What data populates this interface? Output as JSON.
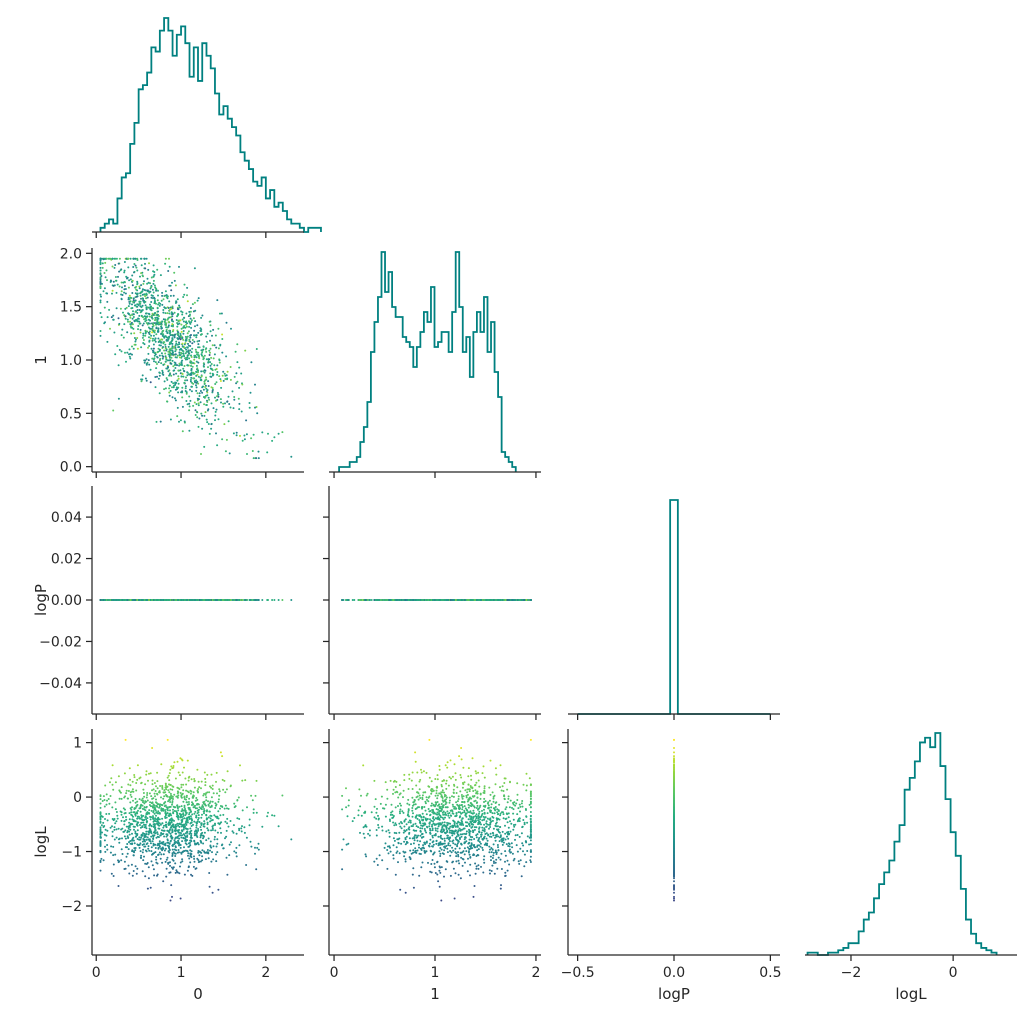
{
  "chart_data": {
    "type": "scatter",
    "layout": "corner pairplot (lower triangle scatter, diagonal histograms)",
    "variables": [
      "0",
      "1",
      "logP",
      "logL"
    ],
    "colors": {
      "histogram": "#008080",
      "colormap": "viridis",
      "axis": "#262626"
    },
    "x_labels": [
      "0",
      "1",
      "logP",
      "logL"
    ],
    "y_labels": [
      "",
      "1",
      "logP",
      "logL"
    ],
    "ticks": {
      "0": {
        "values": [
          0,
          1,
          2
        ],
        "labels": [
          "0",
          "1",
          "2"
        ]
      },
      "1": {
        "values": [
          0,
          0.5,
          1.0,
          1.5,
          2.0
        ],
        "labels": [
          "0.0",
          "0.5",
          "1.0",
          "1.5",
          "2.0"
        ],
        "xlabels": [
          "0",
          "1",
          "2"
        ],
        "xvalues": [
          0,
          1,
          2
        ]
      },
      "logP_x": {
        "values": [
          -0.5,
          0.0,
          0.5
        ],
        "labels": [
          "−0.5",
          "0.0",
          "0.5"
        ]
      },
      "logP_y": {
        "values": [
          -0.04,
          -0.02,
          0.0,
          0.02,
          0.04
        ],
        "labels": [
          "−0.04",
          "−0.02",
          "0.00",
          "0.02",
          "0.04"
        ]
      },
      "logL": {
        "values": [
          -2,
          -1,
          0,
          1
        ],
        "labels": [
          "−2",
          "−1",
          "0",
          "1"
        ],
        "xvalues": [
          -2,
          0
        ],
        "xlabels": [
          "−2",
          "0"
        ]
      }
    },
    "ranges": {
      "0": [
        -0.05,
        2.45
      ],
      "1": [
        -0.05,
        2.05
      ],
      "logP_x": [
        -0.55,
        0.55
      ],
      "logP_y": [
        -0.055,
        0.055
      ],
      "logL": [
        -2.9,
        1.25
      ]
    },
    "histograms": {
      "0": {
        "bin_start": 0.05,
        "bin_width": 0.05,
        "counts": [
          1,
          2,
          3,
          2,
          8,
          13,
          14,
          21,
          26,
          34,
          35,
          38,
          44,
          43,
          48,
          51,
          48,
          42,
          47,
          49,
          45,
          37,
          44,
          36,
          45,
          42,
          39,
          33,
          28,
          30,
          27,
          25,
          23,
          19,
          17,
          15,
          12,
          11,
          13,
          8,
          10,
          6,
          7,
          5,
          3,
          2,
          2,
          1,
          0,
          1,
          1,
          1
        ]
      },
      "1": {
        "bin_start": 0.05,
        "bin_width": 0.035,
        "counts": [
          1,
          1,
          1,
          2,
          2,
          3,
          6,
          9,
          14,
          24,
          30,
          35,
          44,
          36,
          40,
          33,
          31,
          31,
          27,
          26,
          25,
          21,
          25,
          28,
          32,
          30,
          37,
          25,
          26,
          28,
          28,
          24,
          32,
          44,
          33,
          24,
          27,
          19,
          28,
          32,
          28,
          35,
          24,
          30,
          20,
          15,
          4,
          3,
          2,
          1
        ]
      },
      "logP": {
        "bins": [
          -0.5,
          0.5
        ],
        "spike_at": 0.0,
        "spike_count": 1000
      },
      "logL": {
        "bin_start": -2.85,
        "bin_width": 0.1,
        "counts": [
          1,
          1,
          0,
          0,
          1,
          1,
          2,
          3,
          5,
          5,
          10,
          15,
          18,
          24,
          30,
          35,
          40,
          48,
          55,
          70,
          75,
          82,
          90,
          92,
          88,
          94,
          80,
          66,
          52,
          42,
          28,
          15,
          9,
          5,
          3,
          2,
          1
        ]
      }
    },
    "scatter": {
      "marker_size": 2,
      "color_by": "logL",
      "note": "approx 1500 points; logP is constant 0.0"
    }
  }
}
